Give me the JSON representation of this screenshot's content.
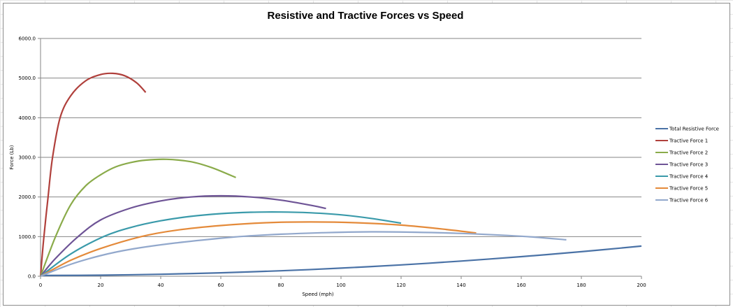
{
  "chart_data": {
    "type": "line",
    "title": "Resistive and Tractive Forces vs Speed",
    "xlabel": "Speed (mph)",
    "ylabel": "Force (Lb)",
    "xlim": [
      0,
      200
    ],
    "ylim": [
      0,
      6000
    ],
    "x_ticks": [
      "0",
      "20",
      "40",
      "60",
      "80",
      "100",
      "120",
      "140",
      "160",
      "180",
      "200"
    ],
    "y_ticks": [
      "0.0",
      "1000.0",
      "2000.0",
      "3000.0",
      "4000.0",
      "5000.0",
      "6000.0"
    ],
    "grid": "horizontal",
    "legend_position": "right",
    "series": [
      {
        "name": "Total Resistive Force",
        "color": "#4a72a6",
        "x": [
          0,
          20,
          40,
          60,
          80,
          100,
          120,
          140,
          160,
          180,
          200
        ],
        "y": [
          20,
          27,
          50,
          87,
          138,
          205,
          286,
          383,
          494,
          619,
          760
        ]
      },
      {
        "name": "Tractive Force 1",
        "color": "#b0403c",
        "x": [
          0,
          1,
          2.5,
          4,
          6.5,
          10,
          15,
          20,
          24,
          28,
          32,
          35
        ],
        "y": [
          0,
          900,
          2000,
          3000,
          4000,
          4550,
          4930,
          5090,
          5120,
          5060,
          4880,
          4640
        ]
      },
      {
        "name": "Tractive Force 2",
        "color": "#8aab4a",
        "x": [
          0,
          5,
          10,
          15,
          20,
          25,
          30,
          35,
          42,
          50,
          57,
          65
        ],
        "y": [
          0,
          1000,
          1800,
          2280,
          2560,
          2760,
          2870,
          2930,
          2950,
          2890,
          2740,
          2490
        ]
      },
      {
        "name": "Tractive Force 3",
        "color": "#6e5496",
        "x": [
          0,
          5,
          12.5,
          20,
          30,
          40,
          50,
          60,
          70,
          80,
          90,
          95
        ],
        "y": [
          0,
          450,
          1000,
          1420,
          1720,
          1900,
          2000,
          2030,
          2000,
          1920,
          1790,
          1710
        ]
      },
      {
        "name": "Tractive Force 4",
        "color": "#3a9aaa",
        "x": [
          0,
          10,
          21,
          30,
          40,
          50,
          60,
          70,
          80,
          90,
          100,
          110,
          120
        ],
        "y": [
          0,
          560,
          1000,
          1230,
          1400,
          1510,
          1580,
          1615,
          1620,
          1600,
          1550,
          1460,
          1340
        ]
      },
      {
        "name": "Tractive Force 5",
        "color": "#e48a3a",
        "x": [
          0,
          10,
          20,
          33.5,
          45,
          60,
          75,
          90,
          105,
          120,
          135,
          145
        ],
        "y": [
          0,
          400,
          700,
          1000,
          1160,
          1280,
          1350,
          1370,
          1350,
          1290,
          1180,
          1090
        ]
      },
      {
        "name": "Tractive Force 6",
        "color": "#92a8cc",
        "x": [
          0,
          10,
          20,
          30,
          45,
          60,
          68,
          80,
          95,
          110,
          125,
          140,
          160,
          175
        ],
        "y": [
          0,
          300,
          520,
          680,
          840,
          960,
          1010,
          1060,
          1100,
          1120,
          1110,
          1080,
          1010,
          920
        ]
      }
    ]
  }
}
